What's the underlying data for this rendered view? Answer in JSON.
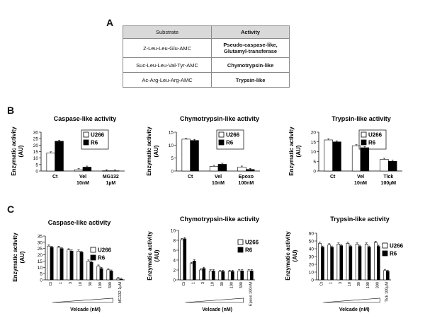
{
  "labels": {
    "A": "A",
    "B": "B",
    "C": "C"
  },
  "table": {
    "headers": [
      "Substrate",
      "Activity"
    ],
    "rows": [
      {
        "substrate": "Z-Leu-Leu-Glu-AMC",
        "activity_line1": "Pseudo-caspase-like,",
        "activity_line2": "Glutamyl-transferase"
      },
      {
        "substrate": "Suc-Leu-Leu-Val-Tyr-AMC",
        "activity_line1": "Chymotrypsin-like",
        "activity_line2": ""
      },
      {
        "substrate": "Ac-Arg-Leu-Arg-AMC",
        "activity_line1": "Trypsin-like",
        "activity_line2": ""
      }
    ]
  },
  "colors": {
    "u266": "#ffffff",
    "r6": "#000000",
    "axis": "#000000"
  },
  "chart_data": [
    {
      "type": "bar",
      "panel": "B",
      "title": "Caspase-like activity",
      "ylabel": "Enzymatic activity (AU)",
      "ylim": [
        0,
        30
      ],
      "yticks": [
        0,
        5,
        10,
        15,
        20,
        25,
        30
      ],
      "categories": [
        "Ct",
        "Vel 10nM",
        "MG132 1µM"
      ],
      "series": [
        {
          "name": "U266",
          "values": [
            14,
            1,
            0.2
          ]
        },
        {
          "name": "R6",
          "values": [
            23,
            3,
            0.2
          ]
        }
      ],
      "legend": "top-right"
    },
    {
      "type": "bar",
      "panel": "B",
      "title": "Chymotrypsin-like activity",
      "ylabel": "Enzymatic activity (AU)",
      "ylim": [
        0,
        15
      ],
      "yticks": [
        0,
        5,
        10,
        15
      ],
      "categories": [
        "Ct",
        "Vel 10nM",
        "Epoxo 100nM"
      ],
      "series": [
        {
          "name": "U266",
          "values": [
            12.3,
            1.8,
            1.5
          ]
        },
        {
          "name": "R6",
          "values": [
            11.8,
            2.6,
            0.6
          ]
        }
      ],
      "legend": "top-right"
    },
    {
      "type": "bar",
      "panel": "B",
      "title": "Trypsin-like activity",
      "ylabel": "Enzymatic activity (AU)",
      "ylim": [
        0,
        20
      ],
      "yticks": [
        0,
        5,
        10,
        15,
        20
      ],
      "categories": [
        "Ct",
        "Vel 10nM",
        "Tlck 100µM"
      ],
      "series": [
        {
          "name": "U266",
          "values": [
            16,
            13,
            6
          ]
        },
        {
          "name": "R6",
          "values": [
            15,
            12,
            5
          ]
        }
      ],
      "legend": "top-right"
    },
    {
      "type": "bar",
      "panel": "C",
      "title": "Caspase-like activity",
      "ylabel": "Enzymatic activity (AU)",
      "xlabel": "Velcade (nM)",
      "ylim": [
        0,
        35
      ],
      "yticks": [
        0,
        5,
        10,
        15,
        20,
        25,
        30,
        35
      ],
      "categories": [
        "Ct",
        "1",
        "3",
        "10",
        "30",
        "100",
        "300",
        "MG132 1µM"
      ],
      "series": [
        {
          "name": "U266",
          "values": [
            27,
            26,
            24,
            23,
            15,
            11,
            8,
            1
          ]
        },
        {
          "name": "R6",
          "values": [
            26,
            25,
            23,
            22,
            14,
            9,
            7,
            0.5
          ]
        }
      ],
      "legend": "right"
    },
    {
      "type": "bar",
      "panel": "C",
      "title": "Chymotrypsin-like activity",
      "ylabel": "Enzymatic activity (AU)",
      "xlabel": "Velcade (nM)",
      "ylim": [
        0,
        10
      ],
      "yticks": [
        0,
        2,
        4,
        6,
        8,
        10
      ],
      "categories": [
        "Ct",
        "1",
        "3",
        "10",
        "30",
        "100",
        "300",
        "Epoxo 100nM"
      ],
      "series": [
        {
          "name": "U266",
          "values": [
            8.1,
            3.3,
            2,
            1.8,
            1.7,
            1.7,
            1.8,
            1.8
          ]
        },
        {
          "name": "R6",
          "values": [
            8.3,
            3.8,
            2.3,
            1.8,
            1.7,
            1.7,
            1.8,
            1.8
          ]
        }
      ],
      "legend": "right"
    },
    {
      "type": "bar",
      "panel": "C",
      "title": "Trypsin-like activity",
      "ylabel": "Enzymatic activity (AU)",
      "xlabel": "Velcade (nM)",
      "ylim": [
        0,
        60
      ],
      "yticks": [
        0,
        10,
        20,
        30,
        40,
        50,
        60
      ],
      "categories": [
        "Ct",
        "1",
        "3",
        "10",
        "30",
        "100",
        "300",
        "Tlck 100µM"
      ],
      "series": [
        {
          "name": "U266",
          "values": [
            47,
            45,
            46,
            47,
            46,
            46,
            48,
            12
          ]
        },
        {
          "name": "R6",
          "values": [
            42,
            42,
            44,
            43,
            43,
            42,
            43,
            11
          ]
        }
      ],
      "legend": "right"
    }
  ]
}
